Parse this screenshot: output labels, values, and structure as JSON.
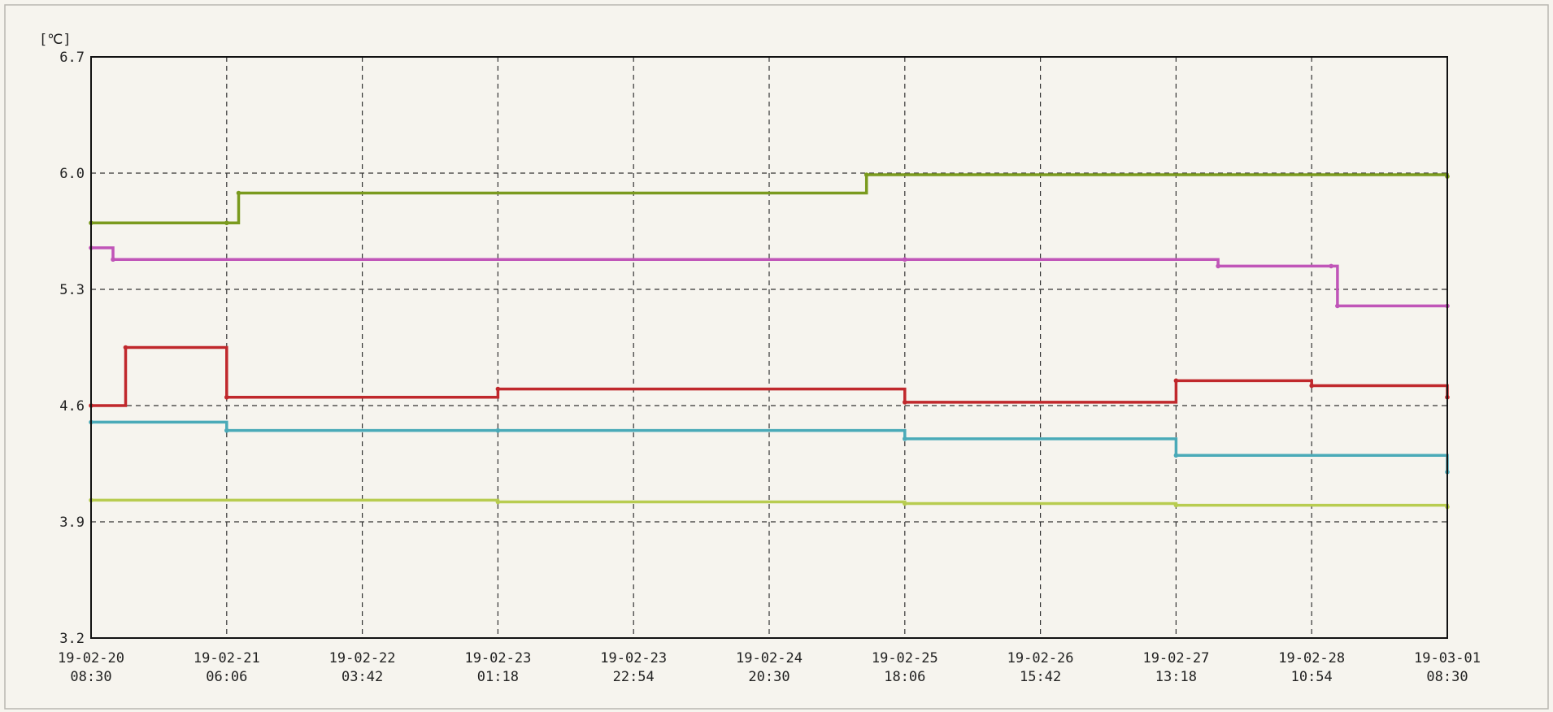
{
  "chart_data": {
    "type": "line",
    "unit_label": "[℃]",
    "title": "",
    "xlabel": "",
    "ylabel": "",
    "ylim": [
      3.2,
      6.7
    ],
    "y_ticks": [
      "6.7",
      "6.0",
      "5.3",
      "4.6",
      "3.9",
      "3.2"
    ],
    "x_ticks": [
      {
        "date": "19-02-20",
        "time": "08:30"
      },
      {
        "date": "19-02-21",
        "time": "06:06"
      },
      {
        "date": "19-02-22",
        "time": "03:42"
      },
      {
        "date": "19-02-23",
        "time": "01:18"
      },
      {
        "date": "19-02-23",
        "time": "22:54"
      },
      {
        "date": "19-02-24",
        "time": "20:30"
      },
      {
        "date": "19-02-25",
        "time": "18:06"
      },
      {
        "date": "19-02-26",
        "time": "15:42"
      },
      {
        "date": "19-02-27",
        "time": "13:18"
      },
      {
        "date": "19-02-28",
        "time": "10:54"
      },
      {
        "date": "19-03-01",
        "time": "08:30"
      }
    ],
    "grid": true,
    "legend": "none",
    "series": [
      {
        "color": "#7a9a1e",
        "x": [
          "19-02-20 08:30",
          "19-02-21 06:06",
          "19-02-21 08:00",
          "19-02-25 12:00",
          "19-03-01 08:30"
        ],
        "y": [
          5.7,
          5.7,
          5.88,
          5.99,
          5.98
        ]
      },
      {
        "color": "#c055b8",
        "x": [
          "19-02-20 08:30",
          "19-02-20 12:00",
          "19-02-25 18:06",
          "19-02-27 20:00",
          "19-02-28 14:00",
          "19-02-28 15:00",
          "19-03-01 08:30"
        ],
        "y": [
          5.55,
          5.48,
          5.48,
          5.44,
          5.44,
          5.2,
          5.2
        ]
      },
      {
        "color": "#c0282c",
        "x": [
          "19-02-20 08:30",
          "19-02-20 14:00",
          "19-02-21 06:06",
          "19-02-23 01:18",
          "19-02-25 18:06",
          "19-02-27 13:18",
          "19-02-28 10:54",
          "19-03-01 08:30"
        ],
        "y": [
          4.6,
          4.95,
          4.65,
          4.7,
          4.62,
          4.75,
          4.72,
          4.65
        ]
      },
      {
        "color": "#4aaab8",
        "x": [
          "19-02-20 08:30",
          "19-02-21 06:06",
          "19-02-23 01:18",
          "19-02-25 18:06",
          "19-02-27 13:18",
          "19-03-01 08:30"
        ],
        "y": [
          4.5,
          4.45,
          4.45,
          4.4,
          4.3,
          4.2
        ]
      },
      {
        "color": "#b8cc50",
        "x": [
          "19-02-20 08:30",
          "19-02-23 01:18",
          "19-02-25 18:06",
          "19-02-27 13:18",
          "19-03-01 08:30"
        ],
        "y": [
          4.03,
          4.02,
          4.01,
          4.0,
          3.99
        ]
      }
    ]
  }
}
